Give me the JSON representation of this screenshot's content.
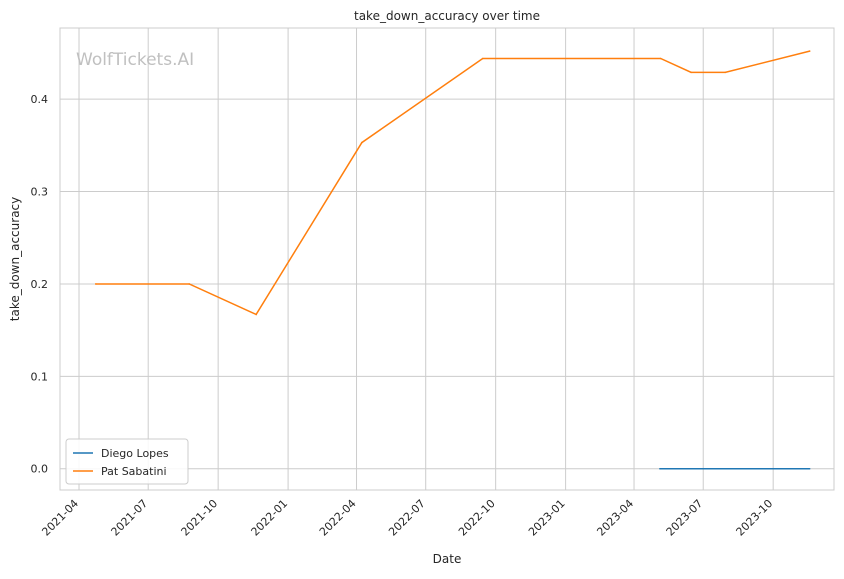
{
  "chart_data": {
    "type": "line",
    "title": "take_down_accuracy over time",
    "xlabel": "Date",
    "ylabel": "take_down_accuracy",
    "watermark": "WolfTickets.AI",
    "grid": true,
    "legend_position": "lower-left",
    "x_ticks": [
      "2021-04",
      "2021-07",
      "2021-10",
      "2022-01",
      "2022-04",
      "2022-07",
      "2022-10",
      "2023-01",
      "2023-04",
      "2023-07",
      "2023-10"
    ],
    "y_ticks": [
      "0.0",
      "0.1",
      "0.2",
      "0.3",
      "0.4"
    ],
    "ylim": [
      -0.023,
      0.477
    ],
    "xlim": [
      "2021-03-07",
      "2023-12-20"
    ],
    "series": [
      {
        "name": "Diego Lopes",
        "color": "#1f77b4",
        "points": [
          {
            "x": "2023-05-05",
            "y": 0.0
          },
          {
            "x": "2023-11-18",
            "y": 0.0
          }
        ]
      },
      {
        "name": "Pat Sabatini",
        "color": "#ff7f0e",
        "points": [
          {
            "x": "2021-04-23",
            "y": 0.2
          },
          {
            "x": "2021-08-24",
            "y": 0.2
          },
          {
            "x": "2021-11-20",
            "y": 0.167
          },
          {
            "x": "2022-04-08",
            "y": 0.353
          },
          {
            "x": "2022-09-14",
            "y": 0.444
          },
          {
            "x": "2023-05-06",
            "y": 0.444
          },
          {
            "x": "2023-06-15",
            "y": 0.429
          },
          {
            "x": "2023-07-30",
            "y": 0.429
          },
          {
            "x": "2023-11-18",
            "y": 0.452
          }
        ]
      }
    ]
  }
}
